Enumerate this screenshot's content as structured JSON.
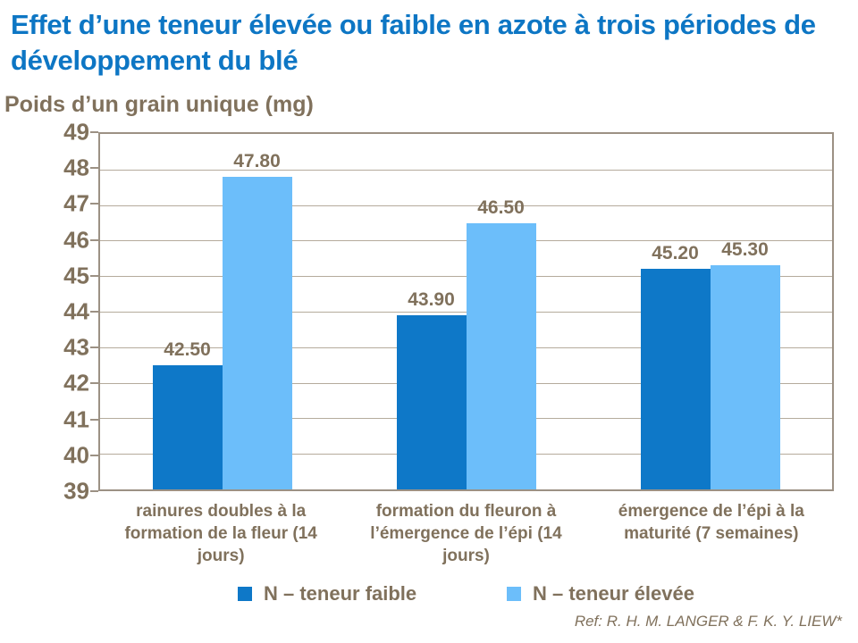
{
  "title": {
    "lines": [
      "Effet d’une teneur élevée ou faible en azote à trois périodes de développement du blé"
    ]
  },
  "axis_title": "Poids d’un grain unique (mg)",
  "reference": "Ref: R. H. M. LANGER & F. K. Y. LIEW*",
  "colors": {
    "title_blue": "#0D76C4",
    "bar_low": "#0E78C8",
    "bar_high": "#6CBEFA",
    "text_brown": "#80715C",
    "plot_border": "#9C9184",
    "gridline": "#B5AB9C"
  },
  "chart_data": {
    "type": "bar",
    "title": "Effet d’une teneur élevée ou faible en azote à trois périodes de développement du blé",
    "ylabel": "Poids d’un grain unique (mg)",
    "categories": [
      "rainures doubles à la formation de la fleur (14 jours)",
      "formation du fleuron à l’émergence de l’épi (14 jours)",
      "émergence de l’épi à la maturité (7 semaines)"
    ],
    "series": [
      {
        "name": "N – teneur faible",
        "color": "#0E78C8",
        "values": [
          42.5,
          43.9,
          45.2
        ],
        "labels": [
          "42.50",
          "43.90",
          "45.20"
        ]
      },
      {
        "name": "N – teneur élevée",
        "color": "#6CBEFA",
        "values": [
          47.8,
          46.5,
          45.3
        ],
        "labels": [
          "47.80",
          "46.50",
          "45.30"
        ]
      }
    ],
    "ylim": [
      39,
      49
    ],
    "ytick_step": 1,
    "grid": "horizontal",
    "legend_position": "bottom"
  }
}
